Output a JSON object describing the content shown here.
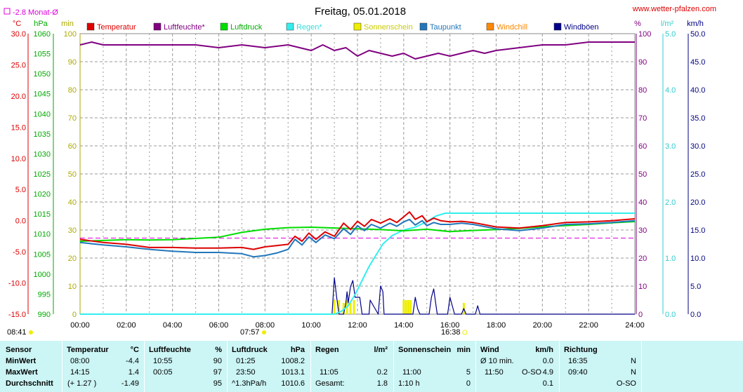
{
  "header": {
    "title": "Freitag, 05.01.2018",
    "site": "www.wetter-pfalzen.com",
    "month_avg": "-2.8 Monat-Ø",
    "units_left": [
      "°C",
      "hPa",
      "min"
    ],
    "units_right": [
      "%",
      "l/m²",
      "km/h"
    ]
  },
  "legend": [
    {
      "name": "Temperatur",
      "color": "#dd0000"
    },
    {
      "name": "Luftfeuchte*",
      "color": "#800080"
    },
    {
      "name": "Luftdruck",
      "color": "#00dd00"
    },
    {
      "name": "Regen*",
      "color": "#33eeee"
    },
    {
      "name": "Sonnenschein",
      "color": "#eeee00"
    },
    {
      "name": "Taupunkt",
      "color": "#2277bb"
    },
    {
      "name": "Windchill",
      "color": "#ff8800"
    },
    {
      "name": "Windböen",
      "color": "#000088"
    }
  ],
  "markers": {
    "sunrise_time": "07:57",
    "sunset_time": "16:38",
    "moon_time": "08:41"
  },
  "chart_data": {
    "type": "line",
    "title": "Freitag, 05.01.2018",
    "x_ticks": [
      "00:00",
      "02:00",
      "04:00",
      "06:00",
      "08:00",
      "10:00",
      "12:00",
      "14:00",
      "16:00",
      "18:00",
      "20:00",
      "22:00",
      "24:00"
    ],
    "x_range_hours": [
      0,
      24
    ],
    "axes": {
      "temperature_c": {
        "range": [
          -15,
          30
        ],
        "ticks": [
          "30.0",
          "25.0",
          "20.0",
          "15.0",
          "10.0",
          "5.0",
          "0.0",
          "-5.0",
          "-10.0",
          "-15.0"
        ],
        "color": "#dd0000"
      },
      "pressure_hpa": {
        "range": [
          990,
          1060
        ],
        "ticks": [
          "1060",
          "1055",
          "1050",
          "1045",
          "1040",
          "1035",
          "1030",
          "1025",
          "1020",
          "1015",
          "1010",
          "1005",
          "1000",
          "995",
          "990"
        ],
        "color": "#00aa00"
      },
      "sunshine_min": {
        "range": [
          0,
          100
        ],
        "ticks": [
          "100",
          "90",
          "80",
          "70",
          "60",
          "50",
          "40",
          "30",
          "20",
          "10",
          "0"
        ],
        "color": "#aaaa00"
      },
      "humidity_pct": {
        "range": [
          0,
          100
        ],
        "ticks": [
          "100",
          "90",
          "80",
          "70",
          "60",
          "50",
          "40",
          "30",
          "20",
          "10",
          "0"
        ],
        "color": "#800080"
      },
      "rain_lm2": {
        "range": [
          0,
          5
        ],
        "ticks": [
          "5.0",
          "4.0",
          "3.0",
          "2.0",
          "1.0",
          "0.0"
        ],
        "color": "#33cccc"
      },
      "wind_kmh": {
        "range": [
          0,
          50
        ],
        "ticks": [
          "50.0",
          "45.0",
          "40.0",
          "35.0",
          "30.0",
          "25.0",
          "20.0",
          "15.0",
          "10.0",
          "5.0",
          "0.0"
        ],
        "color": "#000080"
      }
    },
    "grid": true,
    "month_avg_temperature": -2.8,
    "series": [
      {
        "name": "Temperatur",
        "axis": "temperature_c",
        "color": "#dd0000",
        "x": [
          0,
          1,
          2,
          3,
          4,
          5,
          6,
          7,
          7.5,
          8,
          8.5,
          9,
          9.3,
          9.6,
          9.9,
          10.2,
          10.6,
          11,
          11.4,
          11.7,
          12,
          12.3,
          12.6,
          13,
          13.4,
          13.7,
          14,
          14.25,
          14.5,
          14.8,
          15,
          15.3,
          15.6,
          16,
          16.5,
          17,
          18,
          19,
          20,
          21,
          22,
          23,
          24
        ],
        "y": [
          -3.0,
          -3.5,
          -3.8,
          -4.3,
          -4.3,
          -4.4,
          -4.4,
          -4.3,
          -4.6,
          -4.2,
          -4.0,
          -3.8,
          -2.5,
          -3.3,
          -2.0,
          -3.0,
          -1.8,
          -2.5,
          -0.4,
          -1.4,
          -0.1,
          -0.9,
          0.2,
          -0.4,
          0.3,
          -0.3,
          0.6,
          1.4,
          0.2,
          0.8,
          -0.2,
          0.4,
          0.0,
          -0.2,
          -0.1,
          -0.3,
          -1.0,
          -1.2,
          -0.8,
          -0.3,
          -0.2,
          0.0,
          0.3
        ]
      },
      {
        "name": "Luftfeuchte*",
        "axis": "humidity_pct",
        "color": "#800080",
        "x": [
          0,
          0.5,
          1,
          2,
          3,
          4,
          5,
          6,
          7,
          8,
          9,
          9.5,
          10,
          10.5,
          11,
          11.5,
          12,
          12.5,
          13,
          13.5,
          14,
          14.5,
          15,
          15.5,
          16,
          16.5,
          17,
          17.5,
          18,
          19,
          20,
          21,
          22,
          23,
          24
        ],
        "y": [
          96,
          97,
          96,
          96,
          96,
          96,
          96,
          95,
          96,
          95,
          96,
          95,
          94,
          96,
          94,
          95,
          92,
          94,
          93,
          92,
          93,
          91,
          92,
          93,
          92,
          93,
          94,
          93,
          94,
          95,
          96,
          96,
          97,
          97,
          97
        ]
      },
      {
        "name": "Luftdruck",
        "axis": "pressure_hpa",
        "color": "#00dd00",
        "x": [
          0,
          1,
          2,
          3,
          4,
          5,
          6,
          7,
          8,
          9,
          10,
          11,
          12,
          13,
          14,
          15,
          16,
          17,
          18,
          19,
          20,
          21,
          22,
          23,
          24
        ],
        "y": [
          1008.2,
          1008.4,
          1008.6,
          1008.5,
          1008.6,
          1008.9,
          1009.2,
          1010.4,
          1011.2,
          1011.6,
          1011.7,
          1011.5,
          1011.3,
          1011.1,
          1010.8,
          1011.2,
          1010.6,
          1010.9,
          1011.1,
          1011.4,
          1011.8,
          1012.1,
          1012.4,
          1012.8,
          1013.1
        ]
      },
      {
        "name": "Taupunkt",
        "axis": "temperature_c",
        "color": "#2277bb",
        "x": [
          0,
          1,
          2,
          3,
          4,
          5,
          6,
          7,
          7.5,
          8,
          8.5,
          9,
          9.3,
          9.6,
          9.9,
          10.2,
          10.6,
          11,
          11.4,
          11.7,
          12,
          12.3,
          12.6,
          13,
          13.4,
          13.7,
          14,
          14.25,
          14.5,
          14.8,
          15,
          15.3,
          15.6,
          16,
          16.5,
          17,
          18,
          19,
          20,
          21,
          22,
          23,
          24
        ],
        "y": [
          -3.5,
          -3.9,
          -4.2,
          -4.6,
          -4.9,
          -5.1,
          -5.1,
          -5.3,
          -5.8,
          -5.6,
          -5.2,
          -4.6,
          -3.0,
          -3.9,
          -2.6,
          -3.5,
          -2.3,
          -2.9,
          -1.3,
          -2.2,
          -0.8,
          -1.6,
          -0.6,
          -1.2,
          -0.4,
          -0.9,
          -0.2,
          0.2,
          -0.7,
          0.0,
          -0.8,
          -0.3,
          -0.6,
          -0.6,
          -0.4,
          -0.6,
          -1.3,
          -1.6,
          -1.2,
          -0.6,
          -0.5,
          -0.3,
          0.0
        ]
      },
      {
        "name": "Regen*",
        "axis": "rain_lm2",
        "color": "#33eeee",
        "x": [
          0,
          11.0,
          11.3,
          11.6,
          11.9,
          12.2,
          12.5,
          12.8,
          13.1,
          13.5,
          14,
          14.5,
          15,
          15.4,
          15.8,
          16,
          18,
          20,
          24
        ],
        "y": [
          0,
          0,
          0.05,
          0.15,
          0.35,
          0.6,
          0.85,
          1.05,
          1.25,
          1.4,
          1.5,
          1.55,
          1.65,
          1.75,
          1.8,
          1.8,
          1.8,
          1.8,
          1.8
        ]
      },
      {
        "name": "Windböen",
        "axis": "wind_kmh",
        "color": "#000088",
        "x": [
          0,
          10.9,
          11.0,
          11.1,
          11.2,
          11.4,
          11.5,
          11.55,
          11.6,
          11.7,
          11.8,
          11.9,
          12.1,
          12.2,
          12.5,
          12.55,
          12.9,
          13.0,
          13.1,
          13.15,
          13.3,
          14.4,
          14.5,
          14.6,
          14.7,
          14.8,
          14.9,
          15.1,
          15.2,
          15.3,
          15.4,
          15.45,
          15.6,
          15.9,
          16.0,
          16.1,
          16.2,
          16.3,
          16.5,
          16.6,
          16.7,
          17.1,
          17.2,
          17.3,
          24
        ],
        "y": [
          0,
          0,
          6.5,
          3,
          0,
          0,
          2,
          4,
          2,
          4.9,
          6,
          3,
          3,
          0,
          0,
          2.5,
          0,
          5,
          4,
          0,
          0,
          0,
          3,
          1,
          0,
          0,
          0,
          0,
          3,
          4.5,
          1.5,
          0,
          0,
          0,
          3,
          1.5,
          0,
          0,
          0,
          1,
          0,
          0,
          1.5,
          0,
          0
        ]
      },
      {
        "name": "Sonnenschein",
        "axis": "sunshine_min",
        "color": "#eeee00",
        "x": [
          11.0,
          11.2,
          11.4,
          11.55,
          11.7,
          11.85,
          14.0,
          14.1,
          14.2,
          14.3,
          16.6
        ],
        "y": [
          5,
          5,
          4,
          5,
          4,
          5,
          5,
          5,
          5,
          5,
          4
        ]
      }
    ]
  },
  "stats": {
    "sensor": {
      "h": "Sensor",
      "min": "MinWert",
      "max": "MaxWert",
      "avg": "Durchschnitt"
    },
    "temperature": {
      "h": "Temperatur",
      "u": "°C",
      "min_t": "08:00",
      "min_v": "-4.4",
      "max_t": "14:15",
      "max_v": "1.4",
      "avg_t": "(+ 1.27 )",
      "avg_v": "-1.49"
    },
    "humidity": {
      "h": "Luftfeuchte",
      "u": "%",
      "min_t": "10:55",
      "min_v": "90",
      "max_t": "00:05",
      "max_v": "97",
      "avg_v": "95"
    },
    "pressure": {
      "h": "Luftdruck",
      "u": "hPa",
      "min_t": "01:25",
      "min_v": "1008.2",
      "max_t": "23:50",
      "max_v": "1013.1",
      "avg_t": "^1.3hPa/h",
      "avg_v": "1010.6"
    },
    "rain": {
      "h": "Regen",
      "u": "l/m²",
      "max_t": "11:05",
      "max_v": "0.2",
      "avg_t": "Gesamt:",
      "avg_v": "1.8"
    },
    "sunshine": {
      "h": "Sonnenschein",
      "u": "min",
      "max_t": "11:00",
      "max_v": "5",
      "avg_t": "1:10 h",
      "avg_v": "0"
    },
    "wind": {
      "h": "Wind",
      "u": "km/h",
      "min_t": "Ø 10 min.",
      "min_v": "0.0",
      "max_t": "11:50",
      "max_d": "O-SO",
      "max_v": "4.9",
      "avg_v": "0.1"
    },
    "direction": {
      "h": "Richtung",
      "min_t": "16:35",
      "min_v": "N",
      "max_t": "09:40",
      "max_v": "N",
      "avg_v": "O-SO"
    }
  }
}
